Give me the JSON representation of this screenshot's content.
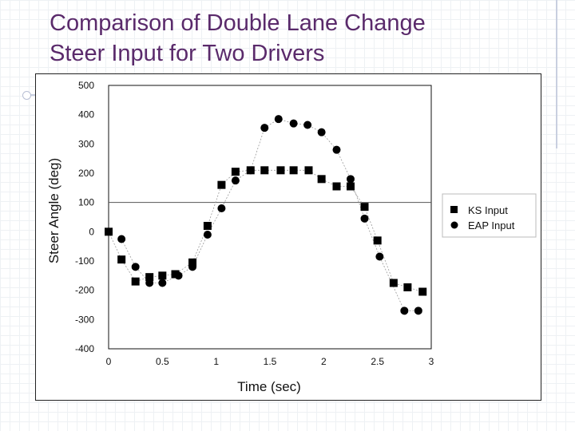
{
  "slide": {
    "title_line1": "Comparison of Double Lane Change",
    "title_line2": "Steer Input for Two Drivers"
  },
  "chart_data": {
    "type": "scatter",
    "title": "",
    "xlabel": "Time (sec)",
    "ylabel": "Steer Angle (deg)",
    "xlim": [
      0,
      3
    ],
    "ylim": [
      -400,
      500
    ],
    "x_ticks": [
      "0",
      "0.5",
      "1",
      "1.5",
      "2",
      "2.5",
      "3"
    ],
    "y_ticks": [
      "500",
      "400",
      "300",
      "200",
      "100",
      "0",
      "-100",
      "-200",
      "-300",
      "-400"
    ],
    "grid": false,
    "reference_line_y": 100,
    "legend_position": "right",
    "series": [
      {
        "name": "KS Input",
        "marker": "square",
        "color": "#000000",
        "x": [
          0,
          0.12,
          0.25,
          0.38,
          0.5,
          0.62,
          0.78,
          0.92,
          1.05,
          1.18,
          1.32,
          1.45,
          1.6,
          1.72,
          1.86,
          1.98,
          2.12,
          2.25,
          2.38,
          2.5,
          2.65,
          2.78,
          2.92
        ],
        "y": [
          0,
          -95,
          -170,
          -155,
          -150,
          -145,
          -105,
          20,
          160,
          205,
          210,
          210,
          210,
          210,
          210,
          180,
          155,
          155,
          85,
          -30,
          -175,
          -190,
          -205
        ]
      },
      {
        "name": "EAP Input",
        "marker": "circle",
        "color": "#000000",
        "x": [
          0.12,
          0.25,
          0.38,
          0.5,
          0.65,
          0.78,
          0.92,
          1.05,
          1.18,
          1.32,
          1.45,
          1.58,
          1.72,
          1.85,
          1.98,
          2.12,
          2.25,
          2.38,
          2.52,
          2.75,
          2.88
        ],
        "y": [
          -25,
          -120,
          -175,
          -175,
          -150,
          -120,
          -10,
          80,
          175,
          210,
          355,
          385,
          370,
          365,
          340,
          280,
          180,
          45,
          -85,
          -270,
          -270
        ]
      }
    ]
  }
}
